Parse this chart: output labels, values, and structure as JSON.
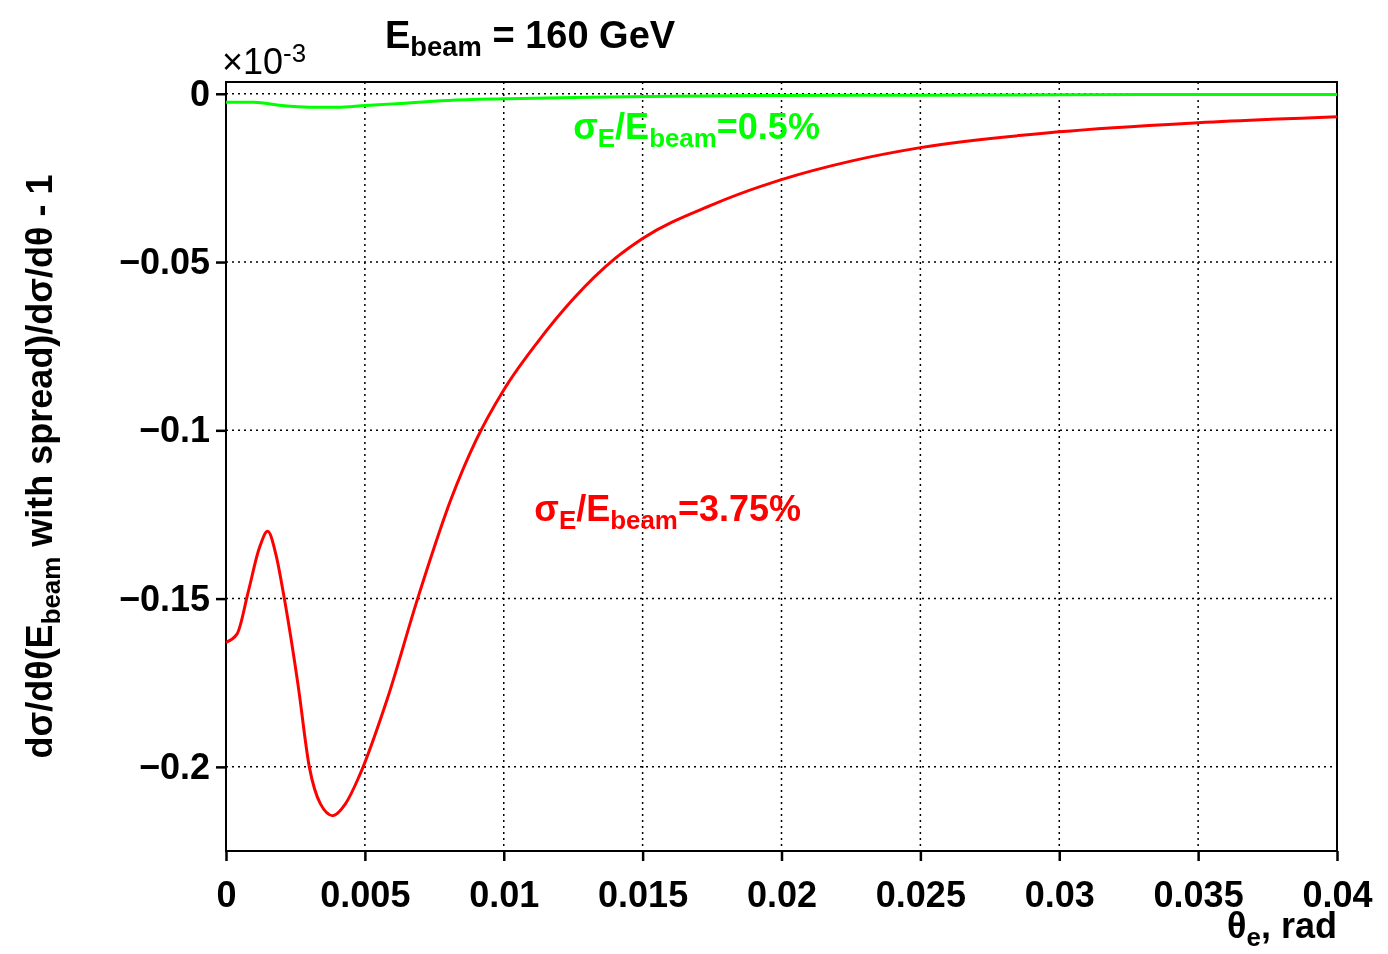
{
  "chart_data": {
    "type": "line",
    "title": "E$_{beam}$ = 160 GeV",
    "xlabel": "θ$_{e}$, rad",
    "ylabel": "dσ/dθ(E$_{beam}$ with spread)/dσ/dθ - 1",
    "annotations": [
      "×10$^{-3}$"
    ],
    "xlim": [
      0,
      0.04
    ],
    "ylim": [
      -0.225,
      0.0035
    ],
    "xticks": [
      0,
      0.005,
      0.01,
      0.015,
      0.02,
      0.025,
      0.03,
      0.035,
      0.04
    ],
    "yticks": [
      0,
      {
        "value": -0.05,
        "label": "−0.05"
      },
      {
        "value": -0.1,
        "label": "−0.1"
      },
      {
        "value": -0.15,
        "label": "−0.15"
      },
      {
        "value": -0.2,
        "label": "−0.2"
      }
    ],
    "grid": true,
    "line_style": "solid",
    "marker": "none",
    "series": [
      {
        "name": "σ$_{E}$/E$_{beam}$=0.5%",
        "color": "#00ff00",
        "x": [
          0,
          0.001,
          0.002,
          0.003,
          0.004,
          0.005,
          0.006,
          0.008,
          0.01,
          0.013,
          0.016,
          0.02,
          0.025,
          0.03,
          0.035,
          0.04
        ],
        "values": [
          -0.0025,
          -0.0025,
          -0.0035,
          -0.004,
          -0.004,
          -0.0035,
          -0.003,
          -0.002,
          -0.0015,
          -0.001,
          -0.0007,
          -0.0005,
          -0.0004,
          -0.0003,
          -0.0002,
          -0.0002
        ]
      },
      {
        "name": "σ$_{E}$/E$_{beam}$=3.75%",
        "color": "#ff0000",
        "x": [
          0,
          0.0004,
          0.0008,
          0.0012,
          0.0015,
          0.0018,
          0.0021,
          0.0026,
          0.003,
          0.0034,
          0.00385,
          0.0043,
          0.0048,
          0.0058,
          0.0069,
          0.0081,
          0.009,
          0.01,
          0.0112,
          0.0125,
          0.014,
          0.015,
          0.0175,
          0.02,
          0.0225,
          0.025,
          0.03,
          0.035,
          0.04
        ],
        "values": [
          -0.163,
          -0.1605,
          -0.148,
          -0.135,
          -0.13,
          -0.137,
          -0.15,
          -0.176,
          -0.2,
          -0.211,
          -0.2145,
          -0.211,
          -0.2027,
          -0.18,
          -0.15,
          -0.1205,
          -0.103,
          -0.088,
          -0.074,
          -0.061,
          -0.049,
          -0.043,
          -0.033,
          -0.0255,
          -0.02,
          -0.016,
          -0.0113,
          -0.0086,
          -0.0068
        ]
      }
    ]
  }
}
